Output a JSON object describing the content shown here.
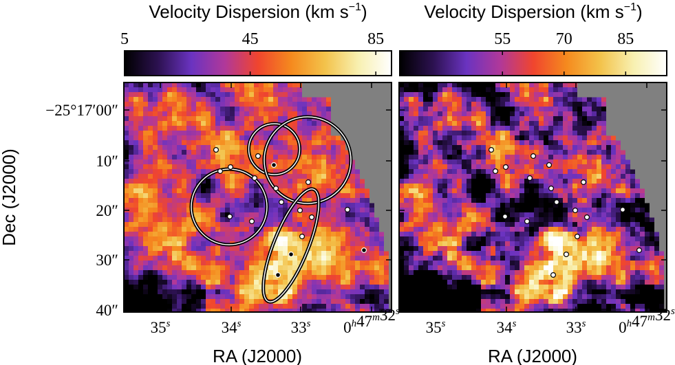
{
  "chart_data": [
    {
      "type": "heatmap",
      "panel": "left",
      "colorbar": {
        "title": "Velocity Dispersion (km s",
        "title_sup": "−1",
        "title_close": ")",
        "ticks": [
          {
            "value": 5,
            "label": "5"
          },
          {
            "value": 45,
            "label": "45"
          },
          {
            "value": 85,
            "label": "85"
          }
        ],
        "range": [
          5,
          90
        ],
        "colormap_stops": [
          "#000000",
          "#2c1150",
          "#6a33c0",
          "#b0389a",
          "#f0452e",
          "#f58a1e",
          "#f3c24a",
          "#f8f0b0",
          "#ffffff"
        ]
      },
      "xlabel": "RA (J2000)",
      "ylabel": "Dec (J2000)",
      "x_ticks": [
        {
          "label": "35",
          "sup": "s"
        },
        {
          "label": "34",
          "sup": "s"
        },
        {
          "label": "33",
          "sup": "s"
        },
        {
          "label": "0",
          "sup": "h",
          "label2": "47",
          "sup2": "m",
          "label3": "32",
          "sup3": "s"
        }
      ],
      "y_ticks": [
        {
          "label": "−25°17′00″"
        },
        {
          "label": "10″"
        },
        {
          "label": "20″"
        },
        {
          "label": "30″"
        },
        {
          "label": "40″"
        }
      ],
      "ellipses": [
        {
          "cx": 398.5,
          "cy": 217,
          "rx": 37,
          "ry": 37,
          "angle": 0
        },
        {
          "cx": 447,
          "cy": 233,
          "rx": 63,
          "ry": 63,
          "angle": 0
        },
        {
          "cx": 333,
          "cy": 301,
          "rx": 55,
          "ry": 55,
          "angle": 0
        },
        {
          "cx": 423,
          "cy": 357,
          "rx": 88,
          "ry": 25,
          "angle": -68
        }
      ]
    },
    {
      "type": "heatmap",
      "panel": "right",
      "colorbar": {
        "title": "Velocity Dispersion (km s",
        "title_sup": "−1",
        "title_close": ")",
        "ticks": [
          {
            "value": 55,
            "label": "55"
          },
          {
            "value": 70,
            "label": "70"
          },
          {
            "value": 85,
            "label": "85"
          }
        ],
        "range": [
          30,
          95
        ],
        "colormap_stops": [
          "#000000",
          "#2c1150",
          "#6a33c0",
          "#b0389a",
          "#f0452e",
          "#f58a1e",
          "#f3c24a",
          "#f8f0b0",
          "#ffffff"
        ]
      },
      "xlabel": "RA (J2000)",
      "x_ticks": [
        {
          "label": "35",
          "sup": "s"
        },
        {
          "label": "34",
          "sup": "s"
        },
        {
          "label": "33",
          "sup": "s"
        },
        {
          "label": "0",
          "sup": "h",
          "label2": "47",
          "sup2": "m",
          "label3": "32",
          "sup3": "s"
        }
      ]
    }
  ],
  "sources": [
    {
      "dx": 134,
      "dy": 98
    },
    {
      "dx": 140,
      "dy": 129
    },
    {
      "dx": 155,
      "dy": 123
    },
    {
      "dx": 195,
      "dy": 107
    },
    {
      "dx": 190,
      "dy": 139
    },
    {
      "dx": 218,
      "dy": 120
    },
    {
      "dx": 221,
      "dy": 154
    },
    {
      "dx": 229,
      "dy": 174
    },
    {
      "dx": 268,
      "dy": 145
    },
    {
      "dx": 256,
      "dy": 186
    },
    {
      "dx": 273,
      "dy": 196
    },
    {
      "dx": 154,
      "dy": 195
    },
    {
      "dx": 186,
      "dy": 202
    },
    {
      "dx": 325,
      "dy": 185
    },
    {
      "dx": 259,
      "dy": 224
    },
    {
      "dx": 243,
      "dy": 250
    },
    {
      "dx": 349,
      "dy": 244
    },
    {
      "dx": 224,
      "dy": 280
    }
  ]
}
